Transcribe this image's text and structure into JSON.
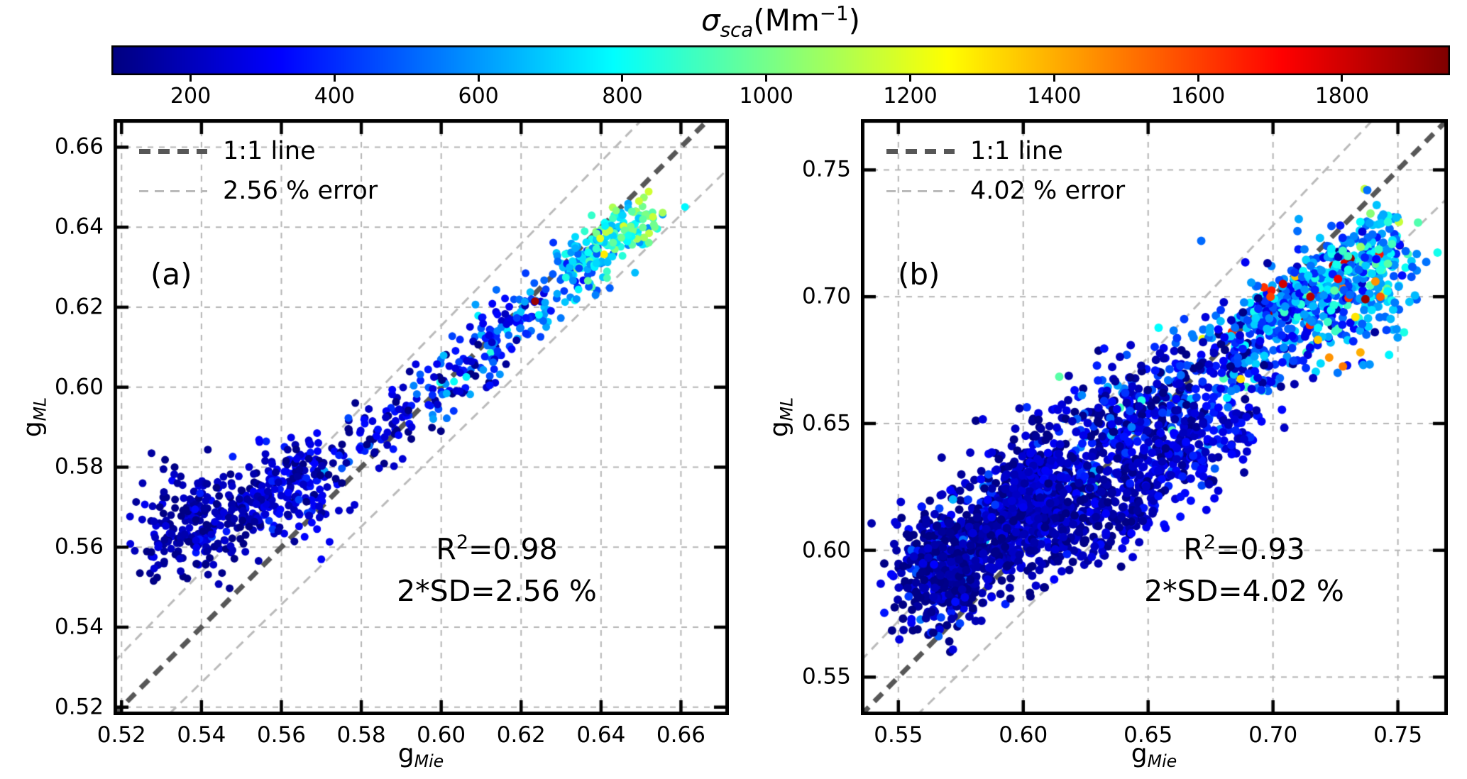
{
  "figure": {
    "background": "#ffffff",
    "colorbar": {
      "title_sigma": "σ",
      "title_sub": "sca",
      "title_open": "(Mm",
      "title_exp": "−1",
      "title_close": ")",
      "colormap": "jet",
      "vmin": 90,
      "vmax": 1950,
      "ticks": [
        200,
        400,
        600,
        800,
        1000,
        1200,
        1400,
        1600,
        1800
      ],
      "tick_labels": [
        "200",
        "400",
        "600",
        "800",
        "1000",
        "1200",
        "1400",
        "1600",
        "1800"
      ]
    }
  },
  "chart_data": [
    {
      "type": "scatter",
      "panel_label": "(a)",
      "xlabel_base": "g",
      "xlabel_sub": "Mie",
      "ylabel_base": "g",
      "ylabel_sub": "ML",
      "xlim": [
        0.518,
        0.672
      ],
      "ylim": [
        0.518,
        0.667
      ],
      "xticks": [
        0.52,
        0.54,
        0.56,
        0.58,
        0.6,
        0.62,
        0.64,
        0.66
      ],
      "xtick_labels": [
        "0.52",
        "0.54",
        "0.56",
        "0.58",
        "0.60",
        "0.62",
        "0.64",
        "0.66"
      ],
      "yticks": [
        0.52,
        0.54,
        0.56,
        0.58,
        0.6,
        0.62,
        0.64,
        0.66
      ],
      "ytick_labels": [
        "0.52",
        "0.54",
        "0.56",
        "0.58",
        "0.60",
        "0.62",
        "0.64",
        "0.66"
      ],
      "legend": {
        "line_label": "1:1 line",
        "error_label": "2.56 % error"
      },
      "annotation": {
        "r2_prefix": "R",
        "r2_exp": "2",
        "r2_rest": "=0.98",
        "sd_line": "2*SD=2.56 %"
      },
      "r_squared": 0.98,
      "sd_percent": 2.56,
      "error_percent": 2.56,
      "color_by": "sigma_sca",
      "grid": true,
      "legend_position": "upper-left",
      "seed": 7,
      "clusters": [
        {
          "n": 430,
          "spine": [
            [
              0.53,
              0.562
            ],
            [
              0.537,
              0.565
            ],
            [
              0.545,
              0.568
            ],
            [
              0.553,
              0.571
            ],
            [
              0.561,
              0.574
            ],
            [
              0.567,
              0.577
            ]
          ],
          "sx": 0.005,
          "sy": 0.0058,
          "t_pow": 1.0,
          "v_base": 140,
          "v_gain": 150,
          "v_pow": 1.0,
          "v_noise": 80
        },
        {
          "n": 400,
          "spine": [
            [
              0.566,
              0.578
            ],
            [
              0.58,
              0.585
            ],
            [
              0.592,
              0.594
            ],
            [
              0.603,
              0.602
            ],
            [
              0.613,
              0.611
            ],
            [
              0.622,
              0.619
            ],
            [
              0.631,
              0.627
            ],
            [
              0.64,
              0.634
            ],
            [
              0.65,
              0.642
            ]
          ],
          "sx": 0.004,
          "sy": 0.0035,
          "t_pow": 0.95,
          "v_base": 200,
          "v_gain": 600,
          "v_pow": 1.7,
          "v_noise": 160,
          "warm_prob": 0.05,
          "warm_tmin": 0.3,
          "warm_range": [
            600,
            850
          ]
        },
        {
          "n": 120,
          "spine": [
            [
              0.633,
              0.629
            ],
            [
              0.64,
              0.635
            ],
            [
              0.646,
              0.639
            ],
            [
              0.652,
              0.644
            ]
          ],
          "sx": 0.003,
          "sy": 0.0026,
          "t_pow": 1.0,
          "v_base": 680,
          "v_gain": 320,
          "v_pow": 1.0,
          "v_noise": 150
        }
      ],
      "special_points": [
        [
          0.6235,
          0.6215,
          1900
        ],
        [
          0.6398,
          0.6372,
          1200
        ],
        [
          0.6032,
          0.6014,
          800
        ],
        [
          0.5275,
          0.5835,
          150
        ],
        [
          0.5305,
          0.5795,
          150
        ],
        [
          0.534,
          0.576,
          150
        ]
      ]
    },
    {
      "type": "scatter",
      "panel_label": "(b)",
      "xlabel_base": "g",
      "xlabel_sub": "Mie",
      "ylabel_base": "g",
      "ylabel_sub": "ML",
      "xlim": [
        0.535,
        0.77
      ],
      "ylim": [
        0.535,
        0.77
      ],
      "xticks": [
        0.55,
        0.6,
        0.65,
        0.7,
        0.75
      ],
      "xtick_labels": [
        "0.55",
        "0.60",
        "0.65",
        "0.70",
        "0.75"
      ],
      "yticks": [
        0.55,
        0.6,
        0.65,
        0.7,
        0.75
      ],
      "ytick_labels": [
        "0.55",
        "0.60",
        "0.65",
        "0.70",
        "0.75"
      ],
      "legend": {
        "line_label": "1:1 line",
        "error_label": "4.02 % error"
      },
      "annotation": {
        "r2_prefix": "R",
        "r2_exp": "2",
        "r2_rest": "=0.93",
        "sd_line": "2*SD=4.02 %"
      },
      "r_squared": 0.93,
      "sd_percent": 4.02,
      "error_percent": 4.02,
      "color_by": "sigma_sca",
      "grid": true,
      "legend_position": "upper-left",
      "seed": 11,
      "clusters": [
        {
          "n": 1500,
          "spine": [
            [
              0.558,
              0.588
            ],
            [
              0.575,
              0.602
            ],
            [
              0.595,
              0.617
            ],
            [
              0.615,
              0.631
            ],
            [
              0.635,
              0.645
            ],
            [
              0.655,
              0.658
            ],
            [
              0.675,
              0.669
            ],
            [
              0.695,
              0.681
            ],
            [
              0.715,
              0.694
            ],
            [
              0.735,
              0.708
            ],
            [
              0.748,
              0.717
            ]
          ],
          "sx": 0.008,
          "sy": 0.013,
          "t_pow": 1.25,
          "v_base": 150,
          "v_gain": 500,
          "v_pow": 1.8,
          "v_noise": 180,
          "warm_prob": 0.05,
          "warm_tmin": 0.35,
          "warm_range": [
            600,
            950
          ],
          "hot_prob": 0.01,
          "hot_tmin": 0.55,
          "hot_range": [
            1150,
            2000
          ]
        },
        {
          "n": 550,
          "spine": [
            [
              0.56,
              0.585
            ],
            [
              0.58,
              0.6
            ],
            [
              0.6,
              0.614
            ],
            [
              0.618,
              0.627
            ]
          ],
          "sx": 0.007,
          "sy": 0.011,
          "t_pow": 1.0,
          "v_base": 130,
          "v_gain": 110,
          "v_pow": 1.0,
          "v_noise": 70
        },
        {
          "n": 450,
          "spine": [
            [
              0.605,
              0.6
            ],
            [
              0.625,
              0.611
            ],
            [
              0.645,
              0.624
            ],
            [
              0.665,
              0.638
            ],
            [
              0.682,
              0.65
            ]
          ],
          "sx": 0.008,
          "sy": 0.009,
          "t_pow": 1.0,
          "v_base": 140,
          "v_gain": 140,
          "v_pow": 1.0,
          "v_noise": 80
        },
        {
          "n": 280,
          "spine": [
            [
              0.688,
              0.688
            ],
            [
              0.703,
              0.696
            ],
            [
              0.718,
              0.704
            ],
            [
              0.733,
              0.712
            ],
            [
              0.746,
              0.718
            ]
          ],
          "sx": 0.005,
          "sy": 0.0065,
          "t_pow": 1.0,
          "v_base": 430,
          "v_gain": 260,
          "v_pow": 1.0,
          "v_noise": 190,
          "hot_prob": 0.04,
          "hot_tmin": 0.0,
          "hot_range": [
            1250,
            2000
          ]
        }
      ],
      "special_points": [
        [
          0.7225,
          0.676,
          1450
        ],
        [
          0.728,
          0.6725,
          1500
        ],
        [
          0.735,
          0.678,
          1400
        ],
        [
          0.718,
          0.683,
          1350
        ],
        [
          0.743,
          0.7,
          1550
        ],
        [
          0.737,
          0.699,
          1900
        ],
        [
          0.715,
          0.7,
          1850
        ],
        [
          0.704,
          0.705,
          1800
        ],
        [
          0.699,
          0.7,
          1600
        ],
        [
          0.726,
          0.707,
          1750
        ],
        [
          0.733,
          0.692,
          1300
        ],
        [
          0.741,
          0.706,
          1450
        ],
        [
          0.746,
          0.713,
          950
        ],
        [
          0.73,
          0.716,
          900
        ]
      ]
    }
  ]
}
